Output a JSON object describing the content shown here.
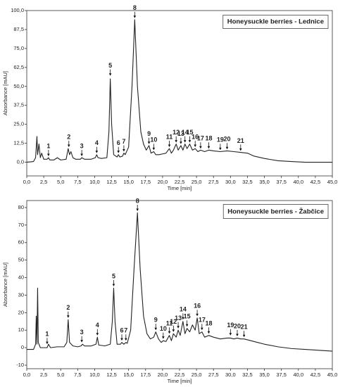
{
  "chart_data": [
    {
      "type": "line",
      "title": "Honeysuckle berries - Lednice",
      "x_label": "Time [min]",
      "y_label": "Absorbance [mAU]",
      "color": "#222222",
      "x": [
        0,
        1,
        1.3,
        1.5,
        1.6,
        1.8,
        2.0,
        2.2,
        2.5,
        3.0,
        3.2,
        3.4,
        4.0,
        4.5,
        5.0,
        5.8,
        6.1,
        6.3,
        6.5,
        6.8,
        7.2,
        7.9,
        8.1,
        8.5,
        9.5,
        10.1,
        10.3,
        10.5,
        11,
        11.8,
        12.1,
        12.3,
        12.5,
        12.8,
        13.3,
        13.5,
        13.7,
        14.1,
        14.3,
        14.5,
        15.0,
        15.5,
        15.9,
        16.3,
        16.8,
        17.2,
        17.6,
        18.0,
        18.3,
        18.7,
        19.0,
        19.5,
        20,
        20.5,
        21.0,
        21.3,
        21.6,
        22.0,
        22.3,
        22.7,
        23.0,
        23.3,
        23.6,
        24.0,
        24.4,
        24.8,
        25.2,
        25.6,
        26.2,
        26.8,
        27.5,
        28.5,
        29.5,
        30.5,
        31.5,
        32.5,
        33.5,
        35,
        37,
        39,
        41,
        43,
        45
      ],
      "values": [
        0,
        0.5,
        3,
        17,
        5,
        12,
        3,
        6,
        2,
        2,
        3,
        1.5,
        1.5,
        3,
        1.5,
        2,
        9,
        5,
        7,
        3,
        2,
        2,
        3,
        2,
        2,
        3,
        5,
        3,
        2.5,
        3,
        20,
        55,
        25,
        5,
        3.5,
        5,
        3.5,
        4,
        6,
        5,
        10,
        50,
        94,
        50,
        20,
        12,
        8,
        11,
        6,
        7,
        5,
        5,
        5.5,
        6,
        9,
        6,
        8,
        12,
        8,
        11,
        8,
        12,
        9,
        12,
        8,
        9,
        7,
        8,
        7,
        8,
        7.5,
        7,
        7.5,
        7,
        6.5,
        6,
        4,
        2.5,
        1,
        0.5,
        0,
        0,
        0
      ],
      "peaks": [
        {
          "label": "1",
          "x": 3.2,
          "y": 4
        },
        {
          "label": "2",
          "x": 6.2,
          "y": 10
        },
        {
          "label": "3",
          "x": 8.1,
          "y": 4
        },
        {
          "label": "4",
          "x": 10.3,
          "y": 6
        },
        {
          "label": "5",
          "x": 12.3,
          "y": 57
        },
        {
          "label": "6",
          "x": 13.5,
          "y": 6
        },
        {
          "label": "7",
          "x": 14.3,
          "y": 7
        },
        {
          "label": "8",
          "x": 15.9,
          "y": 95
        },
        {
          "label": "9",
          "x": 18.0,
          "y": 12
        },
        {
          "label": "10",
          "x": 18.7,
          "y": 8
        },
        {
          "label": "11",
          "x": 21.0,
          "y": 10
        },
        {
          "label": "12",
          "x": 22.0,
          "y": 13
        },
        {
          "label": "13",
          "x": 22.7,
          "y": 12
        },
        {
          "label": "14",
          "x": 23.3,
          "y": 13
        },
        {
          "label": "15",
          "x": 24.0,
          "y": 13
        },
        {
          "label": "16",
          "x": 24.8,
          "y": 10
        },
        {
          "label": "17",
          "x": 25.6,
          "y": 9
        },
        {
          "label": "18",
          "x": 26.8,
          "y": 9
        },
        {
          "label": "19",
          "x": 28.5,
          "y": 8
        },
        {
          "label": "20",
          "x": 29.5,
          "y": 8.5
        },
        {
          "label": "21",
          "x": 31.5,
          "y": 7.5
        }
      ],
      "xlim": [
        0,
        45
      ],
      "xticks": [
        {
          "value": 0,
          "label": "0,0"
        },
        {
          "value": 2.5,
          "label": "2,5"
        },
        {
          "value": 5,
          "label": "5,0"
        },
        {
          "value": 7.5,
          "label": "7,5"
        },
        {
          "value": 10,
          "label": "10,0"
        },
        {
          "value": 12.5,
          "label": "12,5"
        },
        {
          "value": 15,
          "label": "15,0"
        },
        {
          "value": 17.5,
          "label": "17,5"
        },
        {
          "value": 20,
          "label": "20,0"
        },
        {
          "value": 22.5,
          "label": "22,5"
        },
        {
          "value": 25,
          "label": "25,0"
        },
        {
          "value": 27.5,
          "label": "27,5"
        },
        {
          "value": 30,
          "label": "30,0"
        },
        {
          "value": 32.5,
          "label": "32,5"
        },
        {
          "value": 35,
          "label": "35,0"
        },
        {
          "value": 37.5,
          "label": "37,5"
        },
        {
          "value": 40,
          "label": "40,0"
        },
        {
          "value": 42.5,
          "label": "42,5"
        },
        {
          "value": 45,
          "label": "45,0"
        }
      ],
      "ylim": [
        -9,
        100
      ],
      "yticks": [
        {
          "value": 0,
          "label": "0,0"
        },
        {
          "value": 12.5,
          "label": "12,5"
        },
        {
          "value": 25,
          "label": "25,0"
        },
        {
          "value": 37.5,
          "label": "37,5"
        },
        {
          "value": 50,
          "label": "50,0"
        },
        {
          "value": 62.5,
          "label": "62,5"
        },
        {
          "value": 75,
          "label": "75,0"
        },
        {
          "value": 87.5,
          "label": "87,5"
        },
        {
          "value": 100,
          "label": "100,0"
        }
      ]
    },
    {
      "type": "line",
      "title": "Honeysuckle berries - Žabčice",
      "x_label": "Time [min]",
      "y_label": "Absorbance [mAU]",
      "color": "#222222",
      "x": [
        0,
        1,
        1.3,
        1.4,
        1.5,
        1.6,
        1.7,
        2.0,
        2.5,
        3.0,
        3.2,
        3.5,
        4.5,
        5.5,
        5.9,
        6.1,
        6.3,
        6.8,
        7.5,
        8.0,
        8.2,
        8.5,
        9.5,
        10.2,
        10.4,
        10.6,
        11.5,
        12.3,
        12.6,
        12.8,
        13.0,
        13.3,
        13.8,
        14.0,
        14.3,
        14.6,
        14.8,
        15.3,
        15.8,
        16.3,
        16.7,
        17.2,
        17.7,
        18.2,
        18.7,
        19.0,
        19.4,
        19.8,
        20.1,
        20.5,
        21.0,
        21.3,
        21.6,
        22.0,
        22.3,
        22.6,
        23.0,
        23.3,
        23.6,
        24.0,
        24.4,
        24.8,
        25.1,
        25.4,
        25.8,
        26.2,
        26.8,
        27.5,
        28.5,
        29.5,
        30.0,
        30.5,
        31.0,
        31.5,
        32.0,
        33,
        34,
        35,
        37,
        39,
        41,
        43,
        45
      ],
      "values": [
        -1,
        -1,
        2,
        18,
        2,
        34,
        3,
        0,
        0,
        0,
        2,
        0,
        0.5,
        0.5,
        3,
        16,
        3,
        1,
        0.5,
        1,
        2,
        1,
        1,
        2,
        6,
        1.5,
        1,
        2,
        15,
        34,
        15,
        2,
        2,
        3,
        2,
        3,
        2.5,
        10,
        45,
        77,
        45,
        18,
        8,
        5,
        6,
        9,
        5,
        3,
        4,
        3.5,
        7,
        4,
        8,
        6,
        10,
        7,
        15,
        8,
        11,
        9,
        13,
        10,
        17,
        8,
        9,
        6,
        7,
        6,
        5,
        5.5,
        5.5,
        5,
        5.5,
        5,
        5,
        4,
        3,
        2,
        0.5,
        -0.5,
        -1,
        -1.5,
        -2
      ],
      "peaks": [
        {
          "label": "1",
          "x": 3.0,
          "y": 2
        },
        {
          "label": "2",
          "x": 6.1,
          "y": 17
        },
        {
          "label": "3",
          "x": 8.1,
          "y": 3
        },
        {
          "label": "4",
          "x": 10.4,
          "y": 7
        },
        {
          "label": "5",
          "x": 12.8,
          "y": 35
        },
        {
          "label": "6",
          "x": 14.0,
          "y": 4
        },
        {
          "label": "7",
          "x": 14.6,
          "y": 4
        },
        {
          "label": "8",
          "x": 16.3,
          "y": 78
        },
        {
          "label": "9",
          "x": 19.0,
          "y": 10
        },
        {
          "label": "10",
          "x": 20.1,
          "y": 5
        },
        {
          "label": "11",
          "x": 21.0,
          "y": 8
        },
        {
          "label": "12",
          "x": 21.6,
          "y": 9
        },
        {
          "label": "13",
          "x": 22.3,
          "y": 11
        },
        {
          "label": "14",
          "x": 23.0,
          "y": 16
        },
        {
          "label": "15",
          "x": 23.6,
          "y": 12
        },
        {
          "label": "16",
          "x": 25.1,
          "y": 18
        },
        {
          "label": "17",
          "x": 25.8,
          "y": 10
        },
        {
          "label": "18",
          "x": 26.8,
          "y": 8
        },
        {
          "label": "19",
          "x": 30.0,
          "y": 7
        },
        {
          "label": "20",
          "x": 31.0,
          "y": 6.5
        },
        {
          "label": "21",
          "x": 32.0,
          "y": 6
        }
      ],
      "xlim": [
        0,
        45
      ],
      "xticks": [
        {
          "value": 0,
          "label": "0,0"
        },
        {
          "value": 2.5,
          "label": "2,5"
        },
        {
          "value": 5,
          "label": "5,0"
        },
        {
          "value": 7.5,
          "label": "7,5"
        },
        {
          "value": 10,
          "label": "10,0"
        },
        {
          "value": 12.5,
          "label": "12,5"
        },
        {
          "value": 15,
          "label": "15,0"
        },
        {
          "value": 17.5,
          "label": "17,5"
        },
        {
          "value": 20,
          "label": "20,0"
        },
        {
          "value": 22.5,
          "label": "22,5"
        },
        {
          "value": 25,
          "label": "25,0"
        },
        {
          "value": 27.5,
          "label": "27,5"
        },
        {
          "value": 30,
          "label": "30,0"
        },
        {
          "value": 32.5,
          "label": "32,5"
        },
        {
          "value": 35,
          "label": "35,0"
        },
        {
          "value": 37.5,
          "label": "37,5"
        },
        {
          "value": 40,
          "label": "40,0"
        },
        {
          "value": 42.5,
          "label": "42,5"
        },
        {
          "value": 45,
          "label": "45,0"
        }
      ],
      "ylim": [
        -12,
        84
      ],
      "yticks": [
        -10,
        0,
        10,
        20,
        30,
        40,
        50,
        60,
        70,
        80
      ]
    }
  ]
}
